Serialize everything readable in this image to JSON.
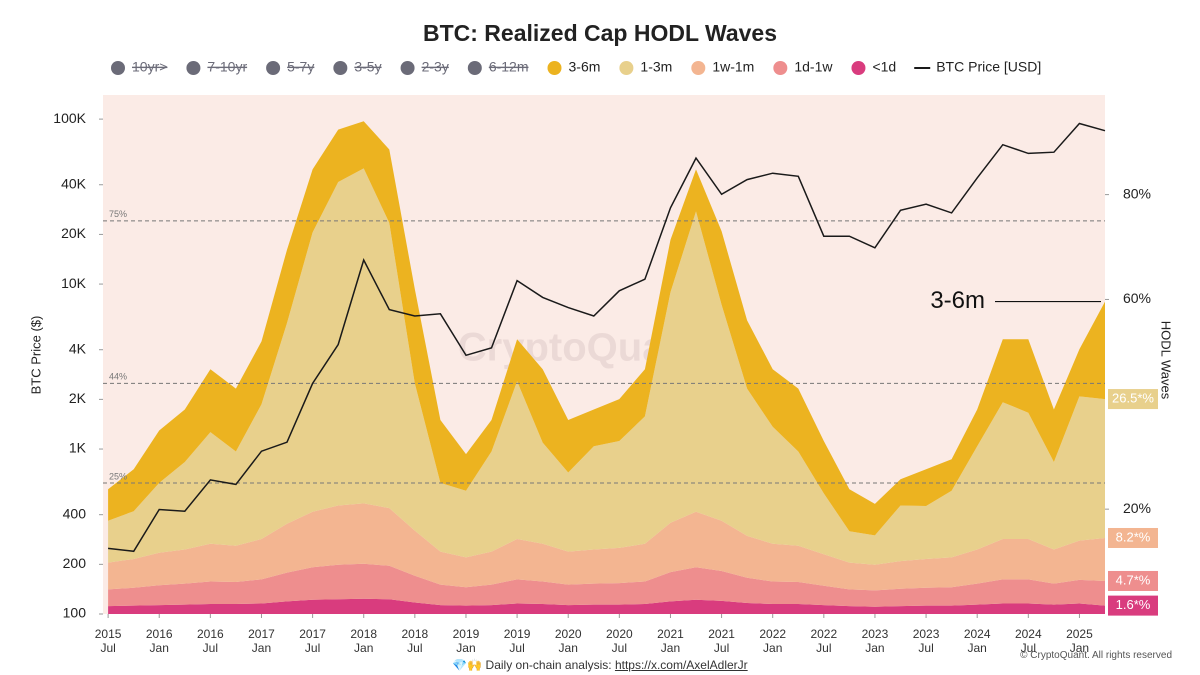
{
  "chart_data": {
    "type": "stacked_area",
    "title": "BTC: Realized Cap HODL Waves",
    "y_label": "BTC Price ($)",
    "y2_label": "HODL Waves",
    "watermark": "CryptoQuant",
    "annotation": "3-6m",
    "hidden_color": "#6b6b78",
    "hidden_series": [
      {
        "name": "10yr>"
      },
      {
        "name": "7-10yr"
      },
      {
        "name": "5-7y"
      },
      {
        "name": "3-5y"
      },
      {
        "name": "2-3y"
      },
      {
        "name": "6-12m"
      }
    ],
    "x": [
      2015.5,
      2015.75,
      2016.0,
      2016.25,
      2016.5,
      2016.75,
      2017.0,
      2017.25,
      2017.5,
      2017.75,
      2018.0,
      2018.25,
      2018.5,
      2018.75,
      2019.0,
      2019.25,
      2019.5,
      2019.75,
      2020.0,
      2020.25,
      2020.5,
      2020.75,
      2021.0,
      2021.25,
      2021.5,
      2021.75,
      2022.0,
      2022.25,
      2022.5,
      2022.75,
      2023.0,
      2023.25,
      2023.5,
      2023.75,
      2024.0,
      2024.25,
      2024.5,
      2024.75,
      2025.0,
      2025.25
    ],
    "xlim": [
      2015.45,
      2025.25
    ],
    "xticks": [
      {
        "value": 2015.5,
        "label": "2015\nJul"
      },
      {
        "value": 2016.0,
        "label": "2016\nJan"
      },
      {
        "value": 2016.5,
        "label": "2016\nJul"
      },
      {
        "value": 2017.0,
        "label": "2017\nJan"
      },
      {
        "value": 2017.5,
        "label": "2017\nJul"
      },
      {
        "value": 2018.0,
        "label": "2018\nJan"
      },
      {
        "value": 2018.5,
        "label": "2018\nJul"
      },
      {
        "value": 2019.0,
        "label": "2019\nJan"
      },
      {
        "value": 2019.5,
        "label": "2019\nJul"
      },
      {
        "value": 2020.0,
        "label": "2020\nJan"
      },
      {
        "value": 2020.5,
        "label": "2020\nJul"
      },
      {
        "value": 2021.0,
        "label": "2021\nJan"
      },
      {
        "value": 2021.5,
        "label": "2021\nJul"
      },
      {
        "value": 2022.0,
        "label": "2022\nJan"
      },
      {
        "value": 2022.5,
        "label": "2022\nJul"
      },
      {
        "value": 2023.0,
        "label": "2023\nJan"
      },
      {
        "value": 2023.5,
        "label": "2023\nJul"
      },
      {
        "value": 2024.0,
        "label": "2024\nJan"
      },
      {
        "value": 2024.5,
        "label": "2024\nJul"
      },
      {
        "value": 2025.0,
        "label": "2025\nJan"
      }
    ],
    "log_y": true,
    "ylim": [
      100,
      140000
    ],
    "yticks": [
      100,
      200,
      400,
      {
        "value": 1000,
        "label": "1K"
      },
      {
        "value": 2000,
        "label": "2K"
      },
      {
        "value": 4000,
        "label": "4K"
      },
      {
        "value": 10000,
        "label": "10K"
      },
      {
        "value": 20000,
        "label": "20K"
      },
      {
        "value": 40000,
        "label": "40K"
      },
      {
        "value": 100000,
        "label": "100K"
      }
    ],
    "y2lim": [
      0,
      99
    ],
    "y2ticks": [
      {
        "value": 20,
        "label": "20%"
      },
      {
        "value": 60,
        "label": "60%"
      },
      {
        "value": 80,
        "label": "80%"
      }
    ],
    "reference_lines": [
      {
        "value": 75,
        "label": "75%"
      },
      {
        "value": 44,
        "label": "44%"
      },
      {
        "value": 25,
        "label": "25%"
      }
    ],
    "series": [
      {
        "name": "3-6m",
        "color": "#ecb320",
        "axis": "y2",
        "values": [
          6,
          8,
          10,
          10,
          12,
          12,
          12,
          14,
          12,
          10,
          9,
          14,
          18,
          12,
          7,
          6,
          8,
          14,
          10,
          7,
          8,
          9,
          10,
          8,
          14,
          13,
          11,
          12,
          10,
          8,
          6,
          5,
          7,
          6,
          7,
          12,
          14,
          10,
          9,
          18.6
        ]
      },
      {
        "name": "1-3m",
        "color": "#e8d08c",
        "axis": "y2",
        "end_label": "26.5*%",
        "values": [
          8.0,
          9.1,
          13.3,
          16.7,
          21.3,
          18.0,
          25.7,
          38.3,
          53.3,
          61.7,
          63.9,
          54.4,
          28.1,
          13.1,
          12.7,
          19.1,
          30.1,
          19.3,
          15.1,
          19.7,
          20.4,
          24.3,
          44.0,
          57.3,
          41.2,
          28.1,
          22.3,
          18.0,
          11.6,
          6.0,
          5.6,
          10.6,
          10.1,
          12.7,
          19.7,
          26.1,
          24.1,
          16.7,
          27.5,
          26.5
        ]
      },
      {
        "name": "1w-1m",
        "color": "#f3b591",
        "axis": "y2",
        "end_label": "8.2*%",
        "values": [
          5.1,
          5.5,
          6.2,
          6.5,
          7.2,
          6.9,
          7.7,
          9.3,
          10.6,
          11.3,
          11.5,
          11.0,
          8.6,
          6.3,
          5.7,
          6.3,
          7.7,
          7.2,
          6.3,
          6.5,
          6.7,
          7.2,
          9.4,
          10.6,
          9.6,
          8.0,
          7.2,
          6.9,
          6.0,
          5.1,
          4.9,
          5.3,
          5.5,
          5.7,
          6.5,
          7.7,
          7.7,
          6.5,
          7.5,
          8.2
        ]
      },
      {
        "name": "1d-1w",
        "color": "#ee8e8e",
        "axis": "y2",
        "end_label": "4.7*%",
        "values": [
          3.2,
          3.4,
          3.8,
          4.0,
          4.3,
          4.2,
          4.6,
          5.5,
          6.2,
          6.6,
          6.7,
          6.4,
          5.1,
          3.9,
          3.5,
          3.9,
          4.6,
          4.3,
          3.9,
          4.0,
          4.1,
          4.3,
          5.6,
          6.2,
          5.7,
          4.8,
          4.3,
          4.2,
          3.7,
          3.2,
          3.1,
          3.3,
          3.4,
          3.5,
          4.0,
          4.6,
          4.6,
          4.0,
          4.5,
          4.7
        ]
      },
      {
        "name": "<1d",
        "color": "#d93c7e",
        "axis": "y2",
        "end_label": "1.6*%",
        "values": [
          1.5,
          1.6,
          1.7,
          1.8,
          1.9,
          1.9,
          2.0,
          2.4,
          2.7,
          2.8,
          2.9,
          2.8,
          2.2,
          1.7,
          1.6,
          1.7,
          2.0,
          1.9,
          1.7,
          1.8,
          1.8,
          1.9,
          2.4,
          2.7,
          2.5,
          2.1,
          1.9,
          1.9,
          1.7,
          1.5,
          1.4,
          1.5,
          1.6,
          1.6,
          1.8,
          2.0,
          2.0,
          1.8,
          2.0,
          1.6
        ]
      },
      {
        "name": "BTC Price [USD]",
        "color": "#1a1a1a",
        "type": "line",
        "values": [
          250,
          240,
          430,
          420,
          650,
          610,
          970,
          1100,
          2500,
          4300,
          14000,
          7000,
          6400,
          6600,
          3700,
          4100,
          10500,
          8300,
          7200,
          6400,
          9100,
          10700,
          29000,
          58000,
          35000,
          43000,
          47000,
          45000,
          19500,
          19500,
          16600,
          28000,
          30500,
          27000,
          44000,
          70000,
          62000,
          63000,
          94000,
          85000
        ]
      }
    ],
    "footer": "💎🙌 Daily on-chain analysis: ",
    "footer_link": "https://x.com/AxelAdlerJr",
    "credit": "© CryptoQuant. All rights reserved"
  }
}
